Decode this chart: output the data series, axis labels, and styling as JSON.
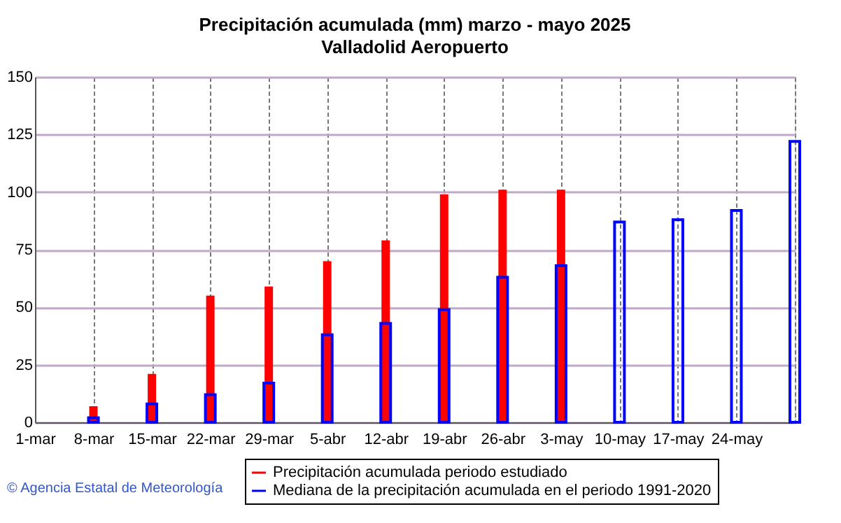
{
  "chart_data": {
    "type": "bar",
    "title": "Precipitación acumulada (mm) marzo - mayo 2025",
    "subtitle": "Valladolid Aeropuerto",
    "categories": [
      "1-mar",
      "8-mar",
      "15-mar",
      "22-mar",
      "29-mar",
      "5-abr",
      "12-abr",
      "19-abr",
      "26-abr",
      "3-may",
      "10-may",
      "17-may",
      "24-may",
      null
    ],
    "series": [
      {
        "name": "Precipitación acumulada periodo estudiado",
        "color": "#ff0000",
        "values": [
          null,
          7,
          21,
          55,
          59,
          70,
          79,
          99,
          101,
          101,
          null,
          null,
          null,
          null
        ]
      },
      {
        "name": "Mediana de la precipitación acumulada en el periodo 1991-2020",
        "color": "#0000ff",
        "values": [
          null,
          2,
          8,
          12,
          17,
          38,
          43,
          49,
          63,
          68,
          87,
          88,
          92,
          122
        ]
      }
    ],
    "ylim": [
      0,
      150
    ],
    "yticks": [
      0,
      25,
      50,
      75,
      100,
      125,
      150
    ],
    "grid": true,
    "legend": "bottom",
    "annotations": [
      "© Agencia Estatal de Meteorología"
    ]
  }
}
